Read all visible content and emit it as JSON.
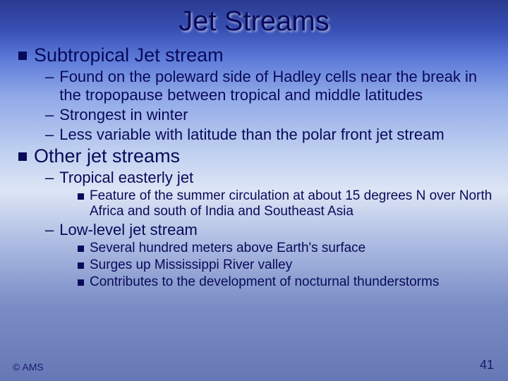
{
  "slide": {
    "title": "Jet Streams",
    "title_fontsize": 40,
    "title_color": "#0a0a5a",
    "text_color": "#0a0a5a",
    "bullet_color": "#0a0a5a",
    "l1_fontsize": 27,
    "l2_fontsize": 22,
    "l3_fontsize": 19,
    "background_gradient": [
      "#2a3a8f",
      "#3850b5",
      "#5a78d8",
      "#8fa8e8",
      "#c0d0f0",
      "#dde5f5",
      "#a8b8e0",
      "#7a8dc5",
      "#6578b5"
    ]
  },
  "content": {
    "section1": {
      "heading": "Subtropical Jet stream",
      "items": [
        "Found on the poleward side of Hadley cells near the break in the tropopause between tropical and middle latitudes",
        "Strongest in winter",
        "Less variable with latitude than the polar front jet stream"
      ]
    },
    "section2": {
      "heading": "Other jet streams",
      "sub1": {
        "heading": "Tropical easterly jet",
        "items": [
          "Feature of the summer circulation at about 15 degrees N over North Africa and south of India and Southeast Asia"
        ]
      },
      "sub2": {
        "heading": "Low-level jet stream",
        "items": [
          "Several hundred meters above Earth's surface",
          "Surges up Mississippi River valley",
          "Contributes to the development of nocturnal thunderstorms"
        ]
      }
    }
  },
  "footer": {
    "copyright": "© AMS",
    "page_number": "41"
  }
}
